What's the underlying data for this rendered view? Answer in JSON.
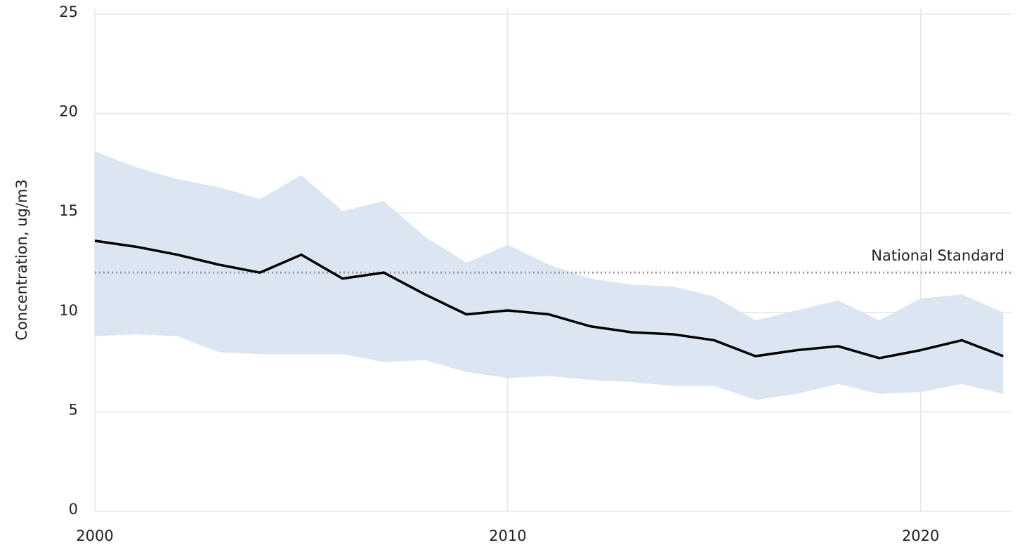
{
  "chart_data": {
    "type": "line",
    "y_label": "Concentration, ug/m3",
    "x": [
      2000,
      2001,
      2002,
      2003,
      2004,
      2005,
      2006,
      2007,
      2008,
      2009,
      2010,
      2011,
      2012,
      2013,
      2014,
      2015,
      2016,
      2017,
      2018,
      2019,
      2020,
      2021,
      2022
    ],
    "values": [
      13.6,
      13.3,
      12.9,
      12.4,
      12.0,
      12.9,
      11.7,
      12.0,
      10.9,
      9.9,
      10.1,
      9.9,
      9.3,
      9.0,
      8.9,
      8.6,
      7.8,
      8.1,
      8.3,
      7.7,
      8.1,
      8.6,
      7.8
    ],
    "color": "#000000",
    "band": {
      "color": "#dce6f2",
      "upper": [
        18.1,
        17.3,
        16.7,
        16.3,
        15.7,
        16.9,
        15.1,
        15.6,
        13.8,
        12.5,
        13.4,
        12.4,
        11.7,
        11.4,
        11.3,
        10.8,
        9.6,
        10.1,
        10.6,
        9.6,
        10.7,
        10.9,
        10.0
      ],
      "lower": [
        8.8,
        8.9,
        8.8,
        8.0,
        7.9,
        7.9,
        7.9,
        7.5,
        7.6,
        7.0,
        6.7,
        6.8,
        6.6,
        6.5,
        6.3,
        6.3,
        5.6,
        5.9,
        6.4,
        5.9,
        6.0,
        6.4,
        5.9
      ]
    },
    "reference_line": {
      "value": 12,
      "label": "National Standard",
      "color": "#999999"
    },
    "xlim": [
      2000,
      2022.2
    ],
    "ylim": [
      0,
      25
    ],
    "xticks": [
      2000,
      2010,
      2020
    ],
    "yticks": [
      0,
      5,
      10,
      15,
      20,
      25
    ],
    "grid": true
  }
}
